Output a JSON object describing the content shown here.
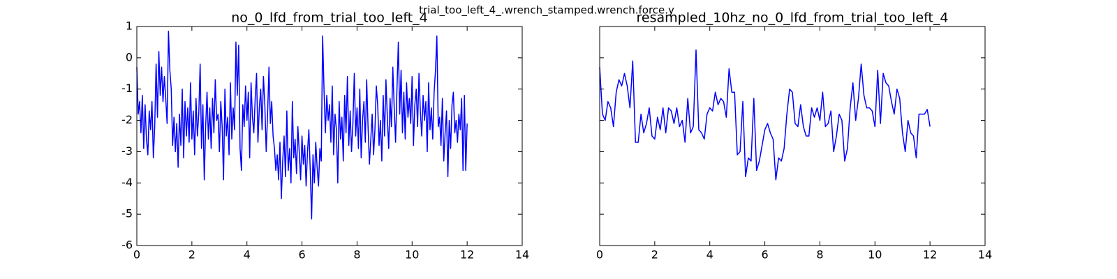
{
  "figure_title": "trial_too_left_4_.wrench_stamped.wrench.force.y",
  "chart_data": [
    {
      "type": "line",
      "title": "no_0_lfd_from_trial_too_left_4",
      "x": [
        0,
        0.05,
        0.1,
        0.15,
        0.2,
        0.25,
        0.3,
        0.35,
        0.4,
        0.45,
        0.5,
        0.55,
        0.6,
        0.65,
        0.7,
        0.75,
        0.8,
        0.85,
        0.9,
        0.95,
        1,
        1.05,
        1.1,
        1.15,
        1.2,
        1.25,
        1.3,
        1.35,
        1.4,
        1.45,
        1.5,
        1.55,
        1.6,
        1.65,
        1.7,
        1.75,
        1.8,
        1.85,
        1.9,
        1.95,
        2,
        2.05,
        2.1,
        2.15,
        2.2,
        2.25,
        2.3,
        2.35,
        2.4,
        2.45,
        2.5,
        2.55,
        2.6,
        2.65,
        2.7,
        2.75,
        2.8,
        2.85,
        2.9,
        2.95,
        3,
        3.05,
        3.1,
        3.15,
        3.2,
        3.25,
        3.3,
        3.35,
        3.4,
        3.45,
        3.5,
        3.55,
        3.6,
        3.65,
        3.7,
        3.75,
        3.8,
        3.85,
        3.9,
        3.95,
        4,
        4.05,
        4.1,
        4.15,
        4.2,
        4.25,
        4.3,
        4.35,
        4.4,
        4.45,
        4.5,
        4.55,
        4.6,
        4.65,
        4.7,
        4.75,
        4.8,
        4.85,
        4.9,
        4.95,
        5,
        5.05,
        5.1,
        5.15,
        5.2,
        5.25,
        5.3,
        5.35,
        5.4,
        5.45,
        5.5,
        5.55,
        5.6,
        5.65,
        5.7,
        5.75,
        5.8,
        5.85,
        5.9,
        5.95,
        6,
        6.05,
        6.1,
        6.15,
        6.2,
        6.25,
        6.3,
        6.35,
        6.4,
        6.45,
        6.5,
        6.55,
        6.6,
        6.65,
        6.7,
        6.75,
        6.8,
        6.85,
        6.9,
        6.95,
        7,
        7.05,
        7.1,
        7.15,
        7.2,
        7.25,
        7.3,
        7.35,
        7.4,
        7.45,
        7.5,
        7.55,
        7.6,
        7.65,
        7.7,
        7.75,
        7.8,
        7.85,
        7.9,
        7.95,
        8,
        8.05,
        8.1,
        8.15,
        8.2,
        8.25,
        8.3,
        8.35,
        8.4,
        8.45,
        8.5,
        8.55,
        8.6,
        8.65,
        8.7,
        8.75,
        8.8,
        8.85,
        8.9,
        8.95,
        9,
        9.05,
        9.1,
        9.15,
        9.2,
        9.25,
        9.3,
        9.35,
        9.4,
        9.45,
        9.5,
        9.55,
        9.6,
        9.65,
        9.7,
        9.75,
        9.8,
        9.85,
        9.9,
        9.95,
        10,
        10.05,
        10.1,
        10.15,
        10.2,
        10.25,
        10.3,
        10.35,
        10.4,
        10.45,
        10.5,
        10.55,
        10.6,
        10.65,
        10.7,
        10.75,
        10.8,
        10.85,
        10.9,
        10.95,
        11,
        11.05,
        11.1,
        11.15,
        11.2,
        11.25,
        11.3,
        11.35,
        11.4,
        11.45,
        11.5,
        11.55,
        11.6,
        11.65,
        11.7,
        11.75,
        11.8,
        11.85,
        11.9,
        11.95,
        12
      ],
      "series": [
        {
          "color": "#0000ff",
          "values": [
            -0.3,
            -1.8,
            -1.4,
            -2.4,
            -1.2,
            -2.9,
            -1.5,
            -2.6,
            -3.1,
            -1.7,
            -2.3,
            -1.4,
            -3.2,
            -2.2,
            -0.2,
            -1.9,
            0.2,
            -1.2,
            -0.3,
            -1.4,
            -0.6,
            -1.3,
            -2.1,
            0.85,
            -0.4,
            -1.0,
            -2.8,
            -1.9,
            -3.0,
            -2.1,
            -3.5,
            -1.8,
            -2.8,
            -1.0,
            -3.2,
            -1.4,
            -2.5,
            -1.6,
            -2.7,
            -0.8,
            -2.6,
            -1.7,
            -3.1,
            -1.3,
            -2.5,
            -1.8,
            -0.2,
            -2.9,
            -1.5,
            -3.9,
            -2.2,
            -1.1,
            -2.6,
            -1.6,
            -2.9,
            -1.3,
            -2.4,
            -0.7,
            -2.0,
            -1.8,
            -3.0,
            -1.4,
            -2.2,
            -3.9,
            -1.0,
            -2.5,
            -1.9,
            -3.1,
            -0.8,
            -2.6,
            -1.6,
            -2.3,
            0.5,
            -1.2,
            0.4,
            -2.9,
            -3.6,
            -1.5,
            -2.2,
            -0.9,
            -2.0,
            -1.1,
            -3.2,
            -0.8,
            -1.9,
            -2.4,
            -1.3,
            -0.5,
            -2.7,
            -1.6,
            -1.0,
            -2.3,
            -0.6,
            -1.5,
            -3.0,
            -1.8,
            -0.3,
            -2.1,
            -1.4,
            -2.5,
            -2.9,
            -3.6,
            -3.1,
            -3.9,
            -2.7,
            -4.5,
            -3.3,
            -2.5,
            -3.8,
            -1.7,
            -3.6,
            -2.9,
            -4.0,
            -1.4,
            -3.2,
            -2.6,
            -3.7,
            -2.2,
            -3.0,
            -3.9,
            -2.5,
            -3.4,
            -2.8,
            -4.1,
            -3.0,
            -2.3,
            -3.6,
            -5.15,
            -3.1,
            -4.0,
            -2.7,
            -3.5,
            -4.1,
            -2.9,
            -3.3,
            0.7,
            -1.0,
            -2.4,
            -1.2,
            -2.0,
            -1.5,
            -2.7,
            -0.9,
            -3.1,
            -1.8,
            -2.3,
            -4.0,
            -1.4,
            -2.6,
            -1.9,
            -3.3,
            -1.2,
            -2.4,
            -0.6,
            -2.8,
            -1.7,
            -3.0,
            -2.1,
            -0.5,
            -2.5,
            -1.6,
            -2.9,
            -1.0,
            -3.2,
            -2.0,
            -1.4,
            -2.7,
            -0.7,
            -2.2,
            -3.4,
            -2.6,
            -1.8,
            -3.1,
            -2.3,
            -0.9,
            -1.5,
            -2.8,
            -2.0,
            -3.3,
            -1.2,
            -2.5,
            -0.7,
            -1.9,
            -2.9,
            -1.3,
            -2.2,
            -0.3,
            -1.6,
            -2.7,
            -1.0,
            0.5,
            -1.8,
            -0.4,
            -2.4,
            -1.1,
            -2.6,
            -0.8,
            -1.9,
            -1.3,
            -2.1,
            -0.6,
            -2.8,
            -1.5,
            -1.0,
            -2.2,
            -0.5,
            -1.7,
            -2.5,
            -1.2,
            -2.0,
            -1.4,
            -3.0,
            -0.8,
            -2.3,
            -1.6,
            -2.6,
            -1.1,
            -0.4,
            0.7,
            -2.2,
            -1.9,
            -2.8,
            -1.3,
            -3.3,
            -2.4,
            -1.7,
            -3.8,
            -2.0,
            -2.9,
            -1.5,
            -1.1,
            -2.4,
            -2.0,
            -2.7,
            -1.8,
            -2.3,
            -1.3,
            -3.6,
            -1.2,
            -3.6,
            -2.1
          ]
        }
      ],
      "xlim": [
        0,
        14
      ],
      "ylim": [
        -6,
        1
      ],
      "xticks": [
        0,
        2,
        4,
        6,
        8,
        10,
        12,
        14
      ],
      "yticks": [
        -6,
        -5,
        -4,
        -3,
        -2,
        -1,
        0,
        1
      ],
      "ytick_labels": true
    },
    {
      "type": "line",
      "title": "resampled_10hz_no_0_lfd_from_trial_too_left_4",
      "x": [
        0,
        0.1,
        0.2,
        0.3,
        0.4,
        0.5,
        0.6,
        0.7,
        0.8,
        0.9,
        1,
        1.1,
        1.2,
        1.3,
        1.4,
        1.5,
        1.6,
        1.7,
        1.8,
        1.9,
        2,
        2.1,
        2.2,
        2.3,
        2.4,
        2.5,
        2.6,
        2.7,
        2.8,
        2.9,
        3,
        3.1,
        3.2,
        3.3,
        3.4,
        3.5,
        3.6,
        3.7,
        3.8,
        3.9,
        4,
        4.1,
        4.2,
        4.3,
        4.4,
        4.5,
        4.6,
        4.7,
        4.8,
        4.9,
        5,
        5.1,
        5.2,
        5.3,
        5.4,
        5.5,
        5.6,
        5.7,
        5.8,
        5.9,
        6,
        6.1,
        6.2,
        6.3,
        6.4,
        6.5,
        6.6,
        6.7,
        6.8,
        6.9,
        7,
        7.1,
        7.2,
        7.3,
        7.4,
        7.5,
        7.6,
        7.7,
        7.8,
        7.9,
        8,
        8.1,
        8.2,
        8.3,
        8.4,
        8.5,
        8.6,
        8.7,
        8.8,
        8.9,
        9,
        9.1,
        9.2,
        9.3,
        9.4,
        9.5,
        9.6,
        9.7,
        9.8,
        9.9,
        10,
        10.1,
        10.2,
        10.3,
        10.4,
        10.5,
        10.6,
        10.7,
        10.8,
        10.9,
        11,
        11.1,
        11.2,
        11.3,
        11.4,
        11.5,
        11.6,
        11.7,
        11.8,
        11.9,
        12
      ],
      "series": [
        {
          "color": "#0000ff",
          "values": [
            -0.3,
            -1.8,
            -2.0,
            -1.4,
            -1.6,
            -2.2,
            -1.1,
            -0.7,
            -0.9,
            -0.5,
            -0.9,
            -1.6,
            -0.1,
            -2.7,
            -2.7,
            -1.8,
            -2.4,
            -2.1,
            -1.6,
            -2.5,
            -2.6,
            -1.9,
            -2.3,
            -1.6,
            -2.4,
            -1.6,
            -1.7,
            -2.1,
            -1.6,
            -2.2,
            -2.0,
            -2.7,
            -1.3,
            -2.4,
            -2.2,
            0.25,
            -2.3,
            -2.4,
            -2.6,
            -1.8,
            -1.6,
            -1.7,
            -1.1,
            -1.5,
            -1.3,
            -1.4,
            -1.9,
            -0.35,
            -1.1,
            -1.1,
            -3.1,
            -3.0,
            -1.4,
            -3.8,
            -3.2,
            -3.3,
            -1.3,
            -3.6,
            -3.3,
            -2.8,
            -2.3,
            -2.1,
            -2.4,
            -2.6,
            -3.9,
            -3.2,
            -3.3,
            -2.9,
            -1.8,
            -1.0,
            -1.1,
            -2.1,
            -2.2,
            -1.5,
            -2.2,
            -2.5,
            -2.5,
            -1.6,
            -1.9,
            -1.6,
            -2.0,
            -1.1,
            -2.2,
            -2.1,
            -1.7,
            -3.0,
            -2.5,
            -1.8,
            -2.0,
            -3.3,
            -2.9,
            -1.6,
            -0.8,
            -2.0,
            -1.3,
            -0.2,
            -1.2,
            -1.6,
            -1.6,
            -1.7,
            -2.2,
            -0.4,
            -2.1,
            -0.5,
            -0.8,
            -0.9,
            -1.4,
            -1.8,
            -1.0,
            -1.3,
            -2.4,
            -3.0,
            -2.0,
            -2.4,
            -2.5,
            -3.2,
            -1.8,
            -1.8,
            -1.8,
            -1.65,
            -2.2
          ]
        }
      ],
      "xlim": [
        0,
        14
      ],
      "ylim": [
        -6,
        1
      ],
      "xticks": [
        0,
        2,
        4,
        6,
        8,
        10,
        12,
        14
      ],
      "yticks": [
        -6,
        -5,
        -4,
        -3,
        -2,
        -1,
        0,
        1
      ],
      "ytick_labels": false
    }
  ]
}
